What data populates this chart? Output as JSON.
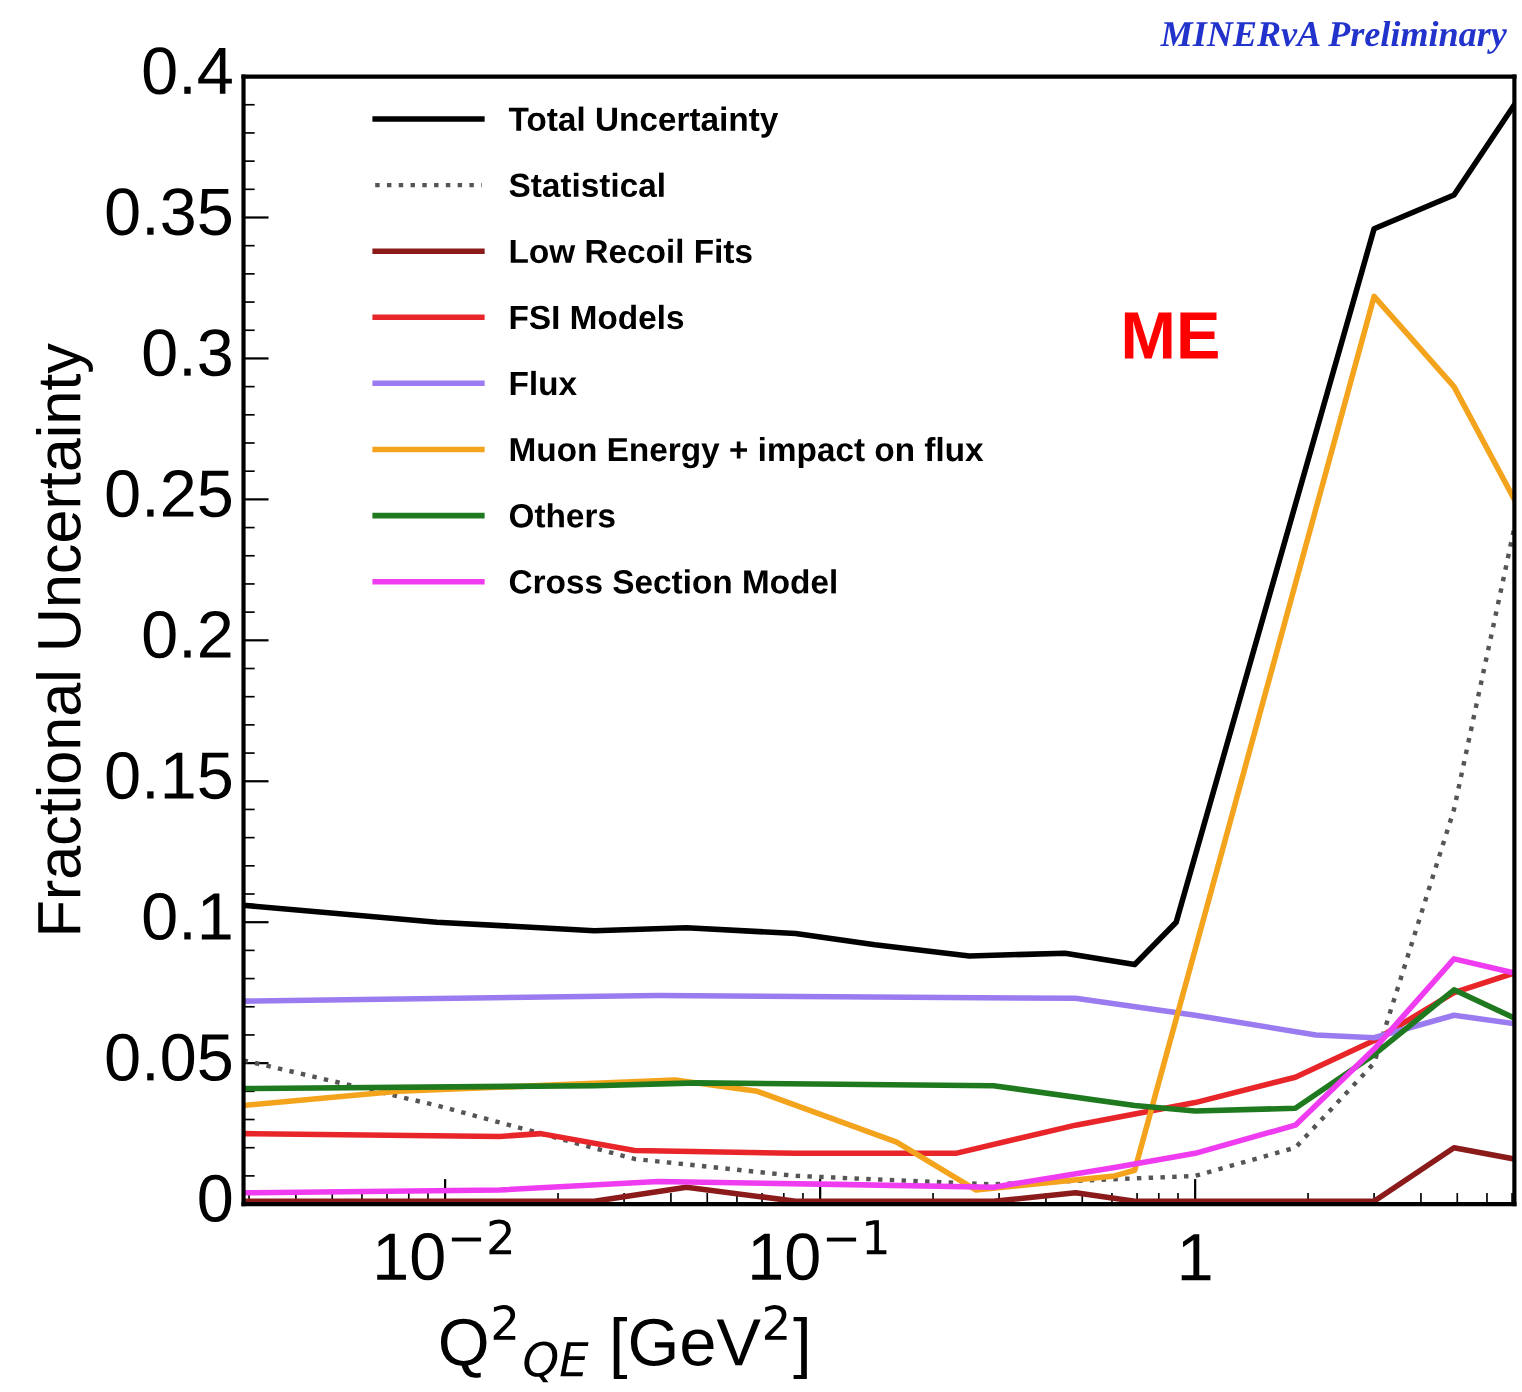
{
  "chart_data": {
    "type": "line",
    "xlabel": "Q$^{2}$$_{QE}$ [GeV$^{2}$]",
    "ylabel": "Fractional Uncertainty",
    "annotations": [
      "MINERνA Preliminary",
      "ME"
    ],
    "log": "x",
    "xlim": [
      0.0029,
      7.1
    ],
    "ylim": [
      0,
      0.4
    ],
    "xticks": [
      {
        "value": 0.01,
        "label": "10$^{−2}$"
      },
      {
        "value": 0.1,
        "label": "10$^{−1}$"
      },
      1
    ],
    "yticks": [
      0,
      0.05,
      0.1,
      0.15,
      0.2,
      0.25,
      0.3,
      0.35,
      0.4
    ],
    "grid": false,
    "legend": "top left",
    "series": [
      {
        "name": "Total Uncertainty",
        "color": "#000000",
        "x": [
          0.0029,
          0.0095,
          0.025,
          0.044,
          0.086,
          0.14,
          0.25,
          0.45,
          0.69,
          0.89,
          3,
          4.9,
          7.1
        ],
        "values": [
          0.106,
          0.1,
          0.097,
          0.098,
          0.096,
          0.092,
          0.088,
          0.089,
          0.085,
          0.1,
          0.346,
          0.358,
          0.39
        ]
      },
      {
        "name": "Statistical",
        "color": "#555555",
        "line_style": "dotted",
        "x": [
          0.0029,
          0.0095,
          0.032,
          0.086,
          0.29,
          1,
          1.85,
          3,
          4.9,
          7.1
        ],
        "values": [
          0.051,
          0.035,
          0.016,
          0.01,
          0.007,
          0.01,
          0.02,
          0.05,
          0.14,
          0.24
        ]
      },
      {
        "name": "Low Recoil Fits",
        "color": "#8b1a1a",
        "x": [
          0.0029,
          0.025,
          0.044,
          0.086,
          0.29,
          0.48,
          0.69,
          3,
          4.9,
          7.1
        ],
        "values": [
          0.001,
          0.001,
          0.006,
          0.001,
          0.001,
          0.004,
          0.001,
          0.001,
          0.02,
          0.016
        ]
      },
      {
        "name": "FSI Models",
        "color": "#e8262a",
        "x": [
          0.0029,
          0.014,
          0.018,
          0.032,
          0.086,
          0.23,
          0.48,
          1,
          1.85,
          3,
          4.9,
          7.1
        ],
        "values": [
          0.025,
          0.024,
          0.025,
          0.019,
          0.018,
          0.018,
          0.028,
          0.036,
          0.045,
          0.058,
          0.075,
          0.082
        ]
      },
      {
        "name": "Flux",
        "color": "#9b7cf0",
        "x": [
          0.0029,
          0.037,
          0.48,
          1,
          2.1,
          3,
          4.9,
          7.1
        ],
        "values": [
          0.072,
          0.074,
          0.073,
          0.067,
          0.06,
          0.059,
          0.067,
          0.064
        ]
      },
      {
        "name": "Muon Energy + impact on flux",
        "color": "#f4a31c",
        "x": [
          0.0029,
          0.0075,
          0.041,
          0.068,
          0.16,
          0.26,
          0.61,
          0.69,
          3,
          4.9,
          7.1
        ],
        "values": [
          0.035,
          0.04,
          0.044,
          0.04,
          0.022,
          0.005,
          0.01,
          0.012,
          0.322,
          0.29,
          0.25
        ]
      },
      {
        "name": "Others",
        "color": "#1f7a1f",
        "x": [
          0.0029,
          0.025,
          0.047,
          0.29,
          0.69,
          1,
          1.85,
          3,
          4.9,
          7.1
        ],
        "values": [
          0.041,
          0.042,
          0.043,
          0.042,
          0.035,
          0.033,
          0.034,
          0.053,
          0.076,
          0.066
        ]
      },
      {
        "name": "Cross Section Model",
        "color": "#f03cf0",
        "x": [
          0.0029,
          0.014,
          0.037,
          0.11,
          0.29,
          0.61,
          1,
          1.85,
          3,
          4.9,
          7.1
        ],
        "values": [
          0.004,
          0.005,
          0.008,
          0.007,
          0.006,
          0.013,
          0.018,
          0.028,
          0.055,
          0.087,
          0.082
        ]
      }
    ]
  }
}
